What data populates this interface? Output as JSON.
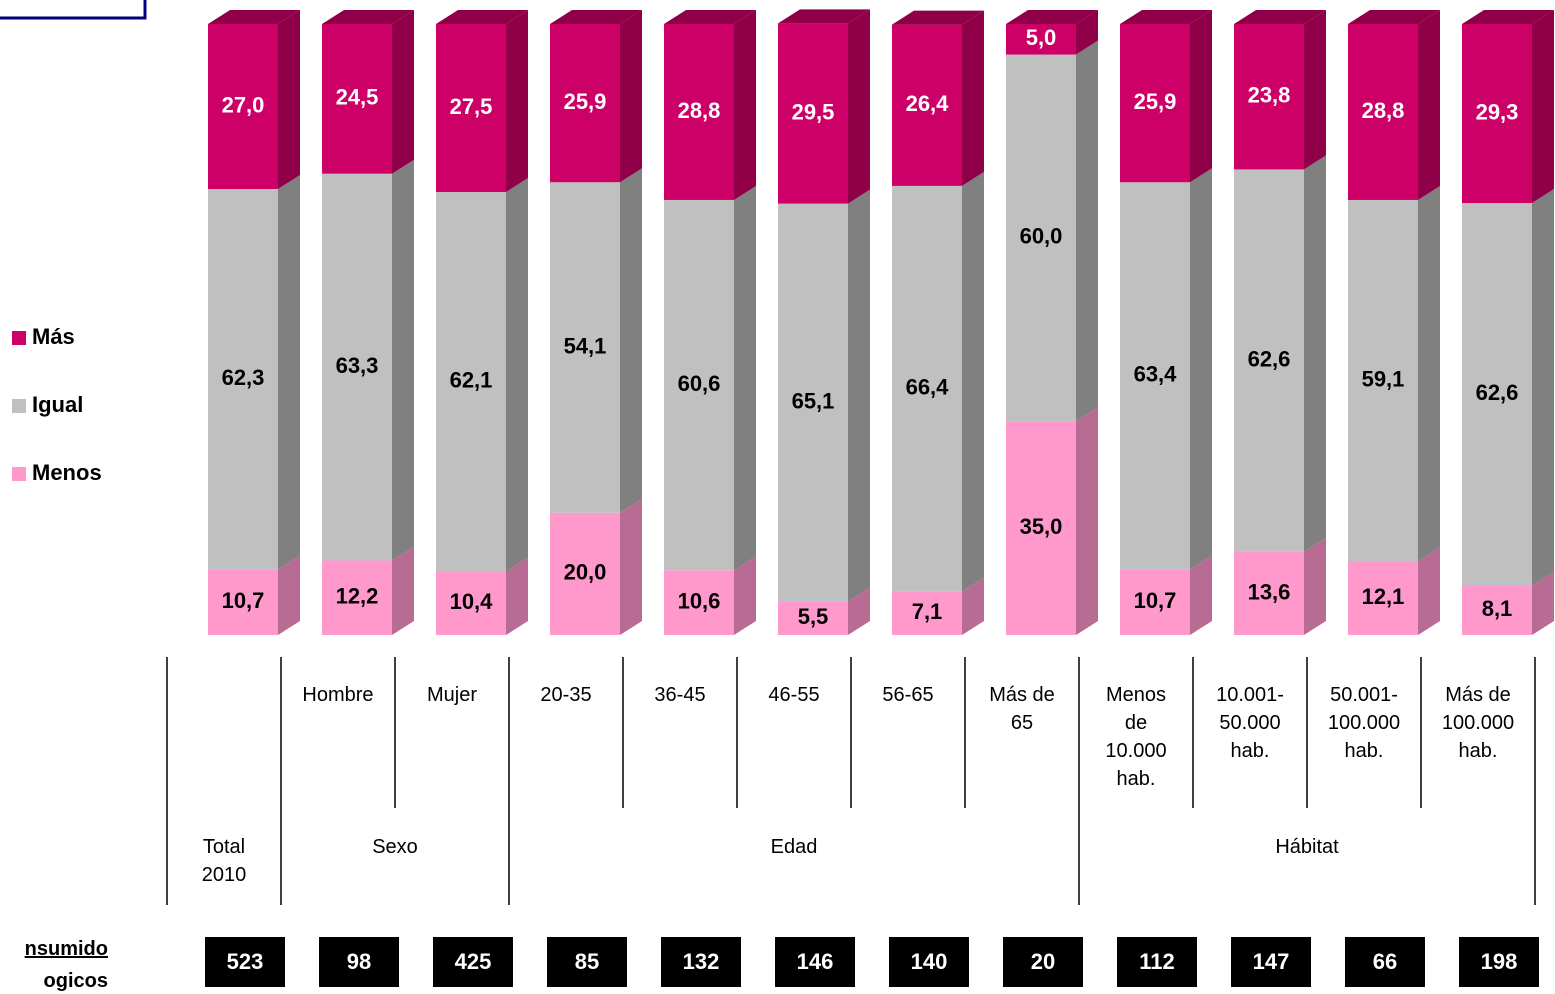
{
  "chart_data": {
    "type": "stacked_bar_3d",
    "groups": [
      {
        "name": "Total 2010",
        "categories": [
          null
        ]
      },
      {
        "name": "Sexo",
        "categories": [
          "Hombre",
          "Mujer"
        ]
      },
      {
        "name": "Edad",
        "categories": [
          "20-35",
          "36-45",
          "46-55",
          "56-65",
          "Más de 65"
        ]
      },
      {
        "name": "Hábitat",
        "categories": [
          "Menos de 10.000 hab.",
          "10.001-50.000 hab.",
          "50.001-100.000 hab.",
          "Más de 100.000 hab."
        ]
      }
    ],
    "ylim": [
      0,
      100
    ],
    "series": [
      {
        "name": "Menos",
        "color": "#ff99cc",
        "side": "#b86b93",
        "values": [
          10.7,
          12.2,
          10.4,
          20.0,
          10.6,
          5.5,
          7.1,
          35.0,
          10.7,
          13.6,
          12.1,
          8.1
        ],
        "value_labels": [
          "10,7",
          "12,2",
          "10,4",
          "20,0",
          "10,6",
          "5,5",
          "7,1",
          "35,0",
          "10,7",
          "13,6",
          "12,1",
          "8,1"
        ]
      },
      {
        "name": "Igual",
        "color": "#c0c0c0",
        "side": "#808080",
        "values": [
          62.3,
          63.3,
          62.1,
          54.1,
          60.6,
          65.1,
          66.4,
          60.0,
          63.4,
          62.6,
          59.1,
          62.6
        ],
        "value_labels": [
          "62,3",
          "63,3",
          "62,1",
          "54,1",
          "60,6",
          "65,1",
          "66,4",
          "60,0",
          "63,4",
          "62,6",
          "59,1",
          "62,6"
        ]
      },
      {
        "name": "Más",
        "color": "#cc0066",
        "side": "#8f0048",
        "values": [
          27.0,
          24.5,
          27.5,
          25.9,
          28.8,
          29.5,
          26.4,
          5.0,
          25.9,
          23.8,
          28.8,
          29.3
        ],
        "value_labels": [
          "27,0",
          "24,5",
          "27,5",
          "25,9",
          "28,8",
          "29,5",
          "26,4",
          "5,0",
          "25,9",
          "23,8",
          "28,8",
          "29,3"
        ]
      }
    ],
    "bases": [
      523,
      98,
      425,
      85,
      132,
      146,
      140,
      20,
      112,
      147,
      66,
      198
    ],
    "base_label": [
      "nsumido",
      "ogicos"
    ]
  }
}
